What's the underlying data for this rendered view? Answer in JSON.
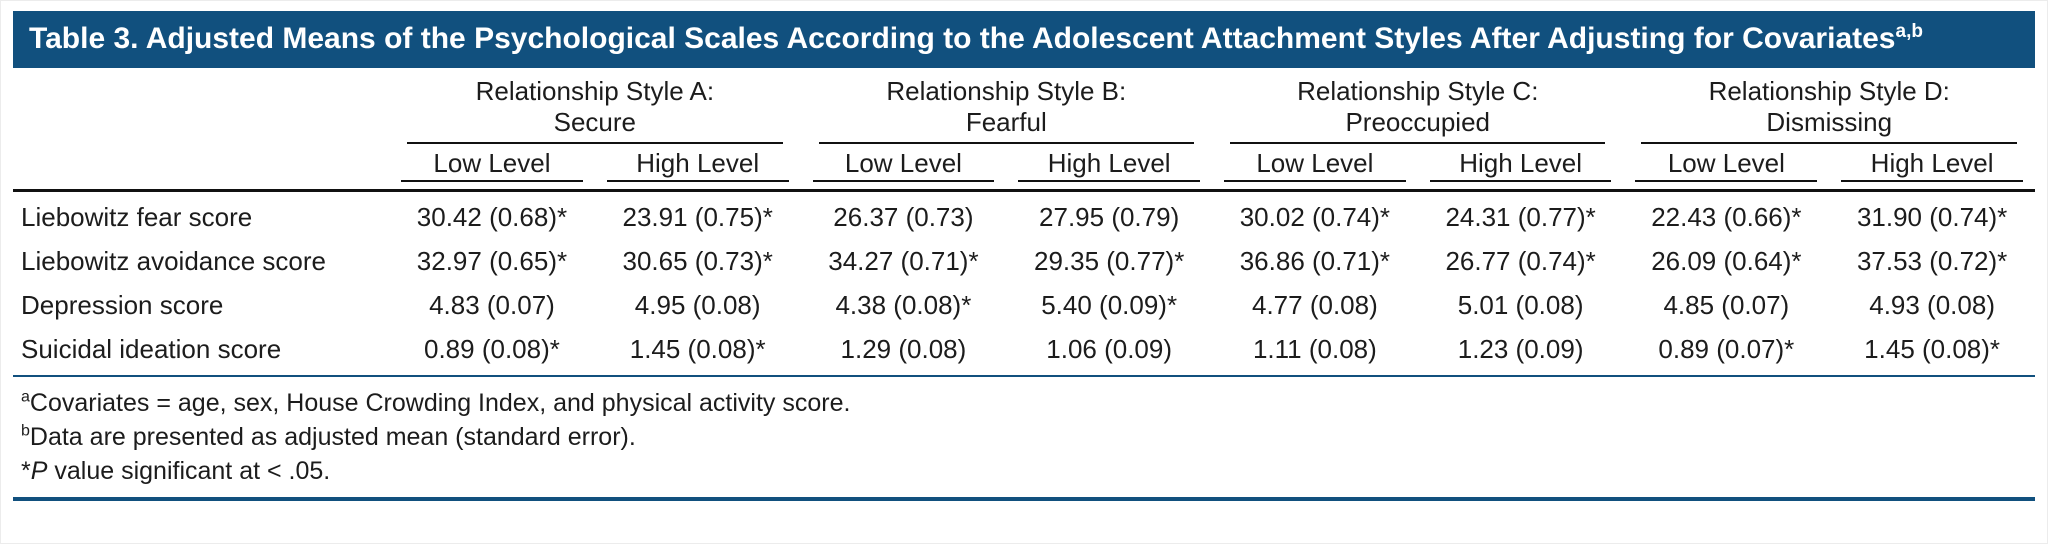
{
  "table": {
    "title": "Table 3. Adjusted Means of the Psychological Scales According to the Adolescent Attachment Styles After Adjusting for Covariates",
    "title_superscript": "a,b",
    "group_headers": [
      {
        "line1": "Relationship Style A:",
        "line2": "Secure"
      },
      {
        "line1": "Relationship Style B:",
        "line2": "Fearful"
      },
      {
        "line1": "Relationship Style C:",
        "line2": "Preoccupied"
      },
      {
        "line1": "Relationship Style D:",
        "line2": "Dismissing"
      }
    ],
    "sub_headers": [
      "Low Level",
      "High Level"
    ],
    "rows": [
      {
        "label": "Liebowitz fear score",
        "values": [
          "30.42 (0.68)*",
          "23.91 (0.75)*",
          "26.37 (0.73)",
          "27.95 (0.79)",
          "30.02 (0.74)*",
          "24.31 (0.77)*",
          "22.43 (0.66)*",
          "31.90 (0.74)*"
        ]
      },
      {
        "label": "Liebowitz avoidance score",
        "values": [
          "32.97 (0.65)*",
          "30.65 (0.73)*",
          "34.27 (0.71)*",
          "29.35 (0.77)*",
          "36.86 (0.71)*",
          "26.77 (0.74)*",
          "26.09 (0.64)*",
          "37.53 (0.72)*"
        ]
      },
      {
        "label": "Depression score",
        "values": [
          "4.83 (0.07)",
          "4.95 (0.08)",
          "4.38 (0.08)*",
          "5.40 (0.09)*",
          "4.77 (0.08)",
          "5.01 (0.08)",
          "4.85 (0.07)",
          "4.93 (0.08)"
        ]
      },
      {
        "label": "Suicidal ideation score",
        "values": [
          "0.89 (0.08)*",
          "1.45 (0.08)*",
          "1.29 (0.08)",
          "1.06 (0.09)",
          "1.11 (0.08)",
          "1.23 (0.09)",
          "0.89 (0.07)*",
          "1.45 (0.08)*"
        ]
      }
    ],
    "footnotes": [
      {
        "marker": "a",
        "text": "Covariates = age, sex, House Crowding Index, and physical activity score."
      },
      {
        "marker": "b",
        "text": "Data are presented as adjusted mean (standard error)."
      },
      {
        "marker": "*",
        "italic": "P",
        "text": " value significant at < .05."
      }
    ],
    "colors": {
      "header_bg": "#11507e",
      "rule_blue": "#11507e",
      "text": "#1c1c1c"
    }
  }
}
